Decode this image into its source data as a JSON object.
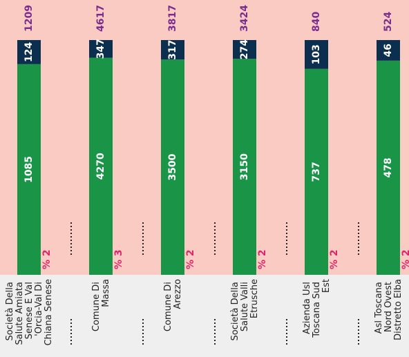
{
  "chart_data": {
    "type": "bar",
    "stacked": true,
    "orientation": "vertical",
    "categories": [
      "Società Della Salute Amiata Senese E Val 'Orcia-Val Di Chiana Senese",
      "Comune Di Massa",
      "Comune Di Arezzo",
      "Società Della Salute Valli Etrusche",
      "Azienda Usl Toscana Sud Est",
      "Asl Toscana Nord Ovest Distretto Elba"
    ],
    "series": [
      {
        "color": "#1a9548",
        "values": [
          1085,
          4270,
          3500,
          3150,
          737,
          478
        ]
      },
      {
        "color": "#0d2f4f",
        "values": [
          124,
          347,
          317,
          274,
          103,
          46
        ]
      }
    ],
    "totals": [
      1209,
      4617,
      3817,
      3424,
      840,
      524
    ],
    "percent": {
      "values": [
        2,
        3,
        2,
        2,
        2,
        2
      ],
      "value_labels": [
        "% 2",
        "% 3",
        "% 2",
        "% 2",
        "% 2",
        "% 2"
      ]
    }
  }
}
